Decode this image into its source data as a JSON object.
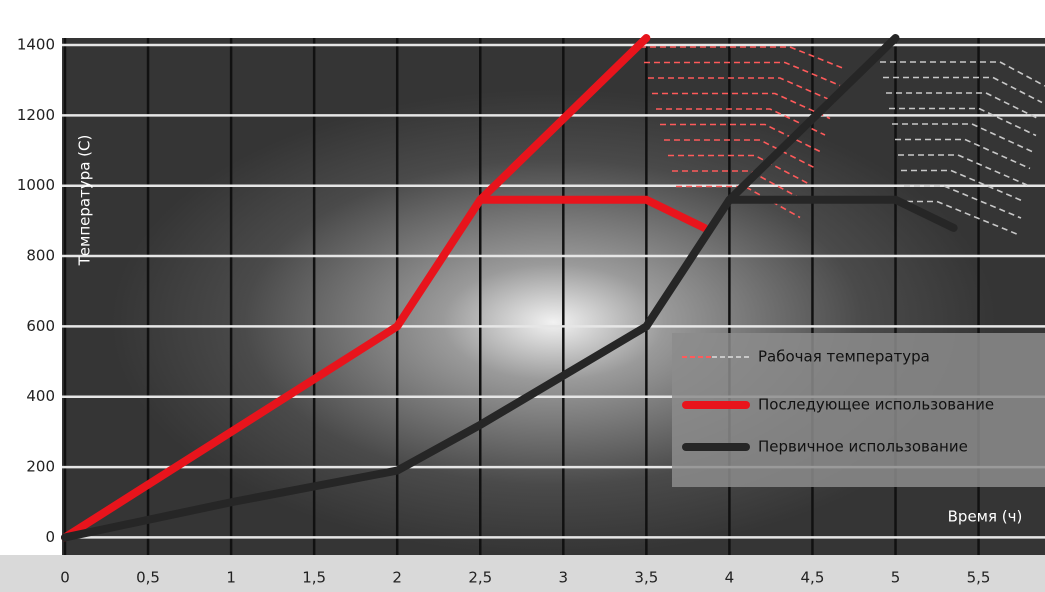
{
  "chart_data": {
    "type": "line",
    "y_label": "Температура (С)",
    "x_label": "Время (ч)",
    "xlim": [
      0,
      5.9
    ],
    "ylim": [
      -50,
      1420
    ],
    "xticks": [
      0,
      {
        "value": 0.5,
        "label": "0,5"
      },
      1,
      {
        "value": 1.5,
        "label": "1,5"
      },
      2,
      {
        "value": 2.5,
        "label": "2,5"
      },
      3,
      {
        "value": 3.5,
        "label": "3,5"
      },
      4,
      {
        "value": 4.5,
        "label": "4,5"
      },
      5,
      {
        "value": 5.5,
        "label": "5,5"
      }
    ],
    "yticks": [
      0,
      200,
      400,
      600,
      800,
      1000,
      1200,
      1400
    ],
    "grid": true,
    "working_band": {
      "name": "Рабочая температура",
      "colors": [
        "#ff5a5a",
        "#c8c8c8"
      ]
    },
    "series": [
      {
        "name": "Последующее использование",
        "color": "#e8141c",
        "x": [
          0,
          2,
          2.5,
          3.5,
          null,
          2.5,
          3.5,
          3.85
        ],
        "values": [
          0,
          600,
          960,
          1420,
          null,
          960,
          960,
          880
        ]
      },
      {
        "name": "Первичное использование",
        "color": "#262626",
        "x": [
          0,
          1,
          2,
          2.5,
          3.5,
          4,
          5,
          null,
          4,
          5,
          5.35
        ],
        "values": [
          0,
          100,
          190,
          320,
          600,
          960,
          1420,
          null,
          960,
          960,
          880
        ]
      }
    ]
  }
}
